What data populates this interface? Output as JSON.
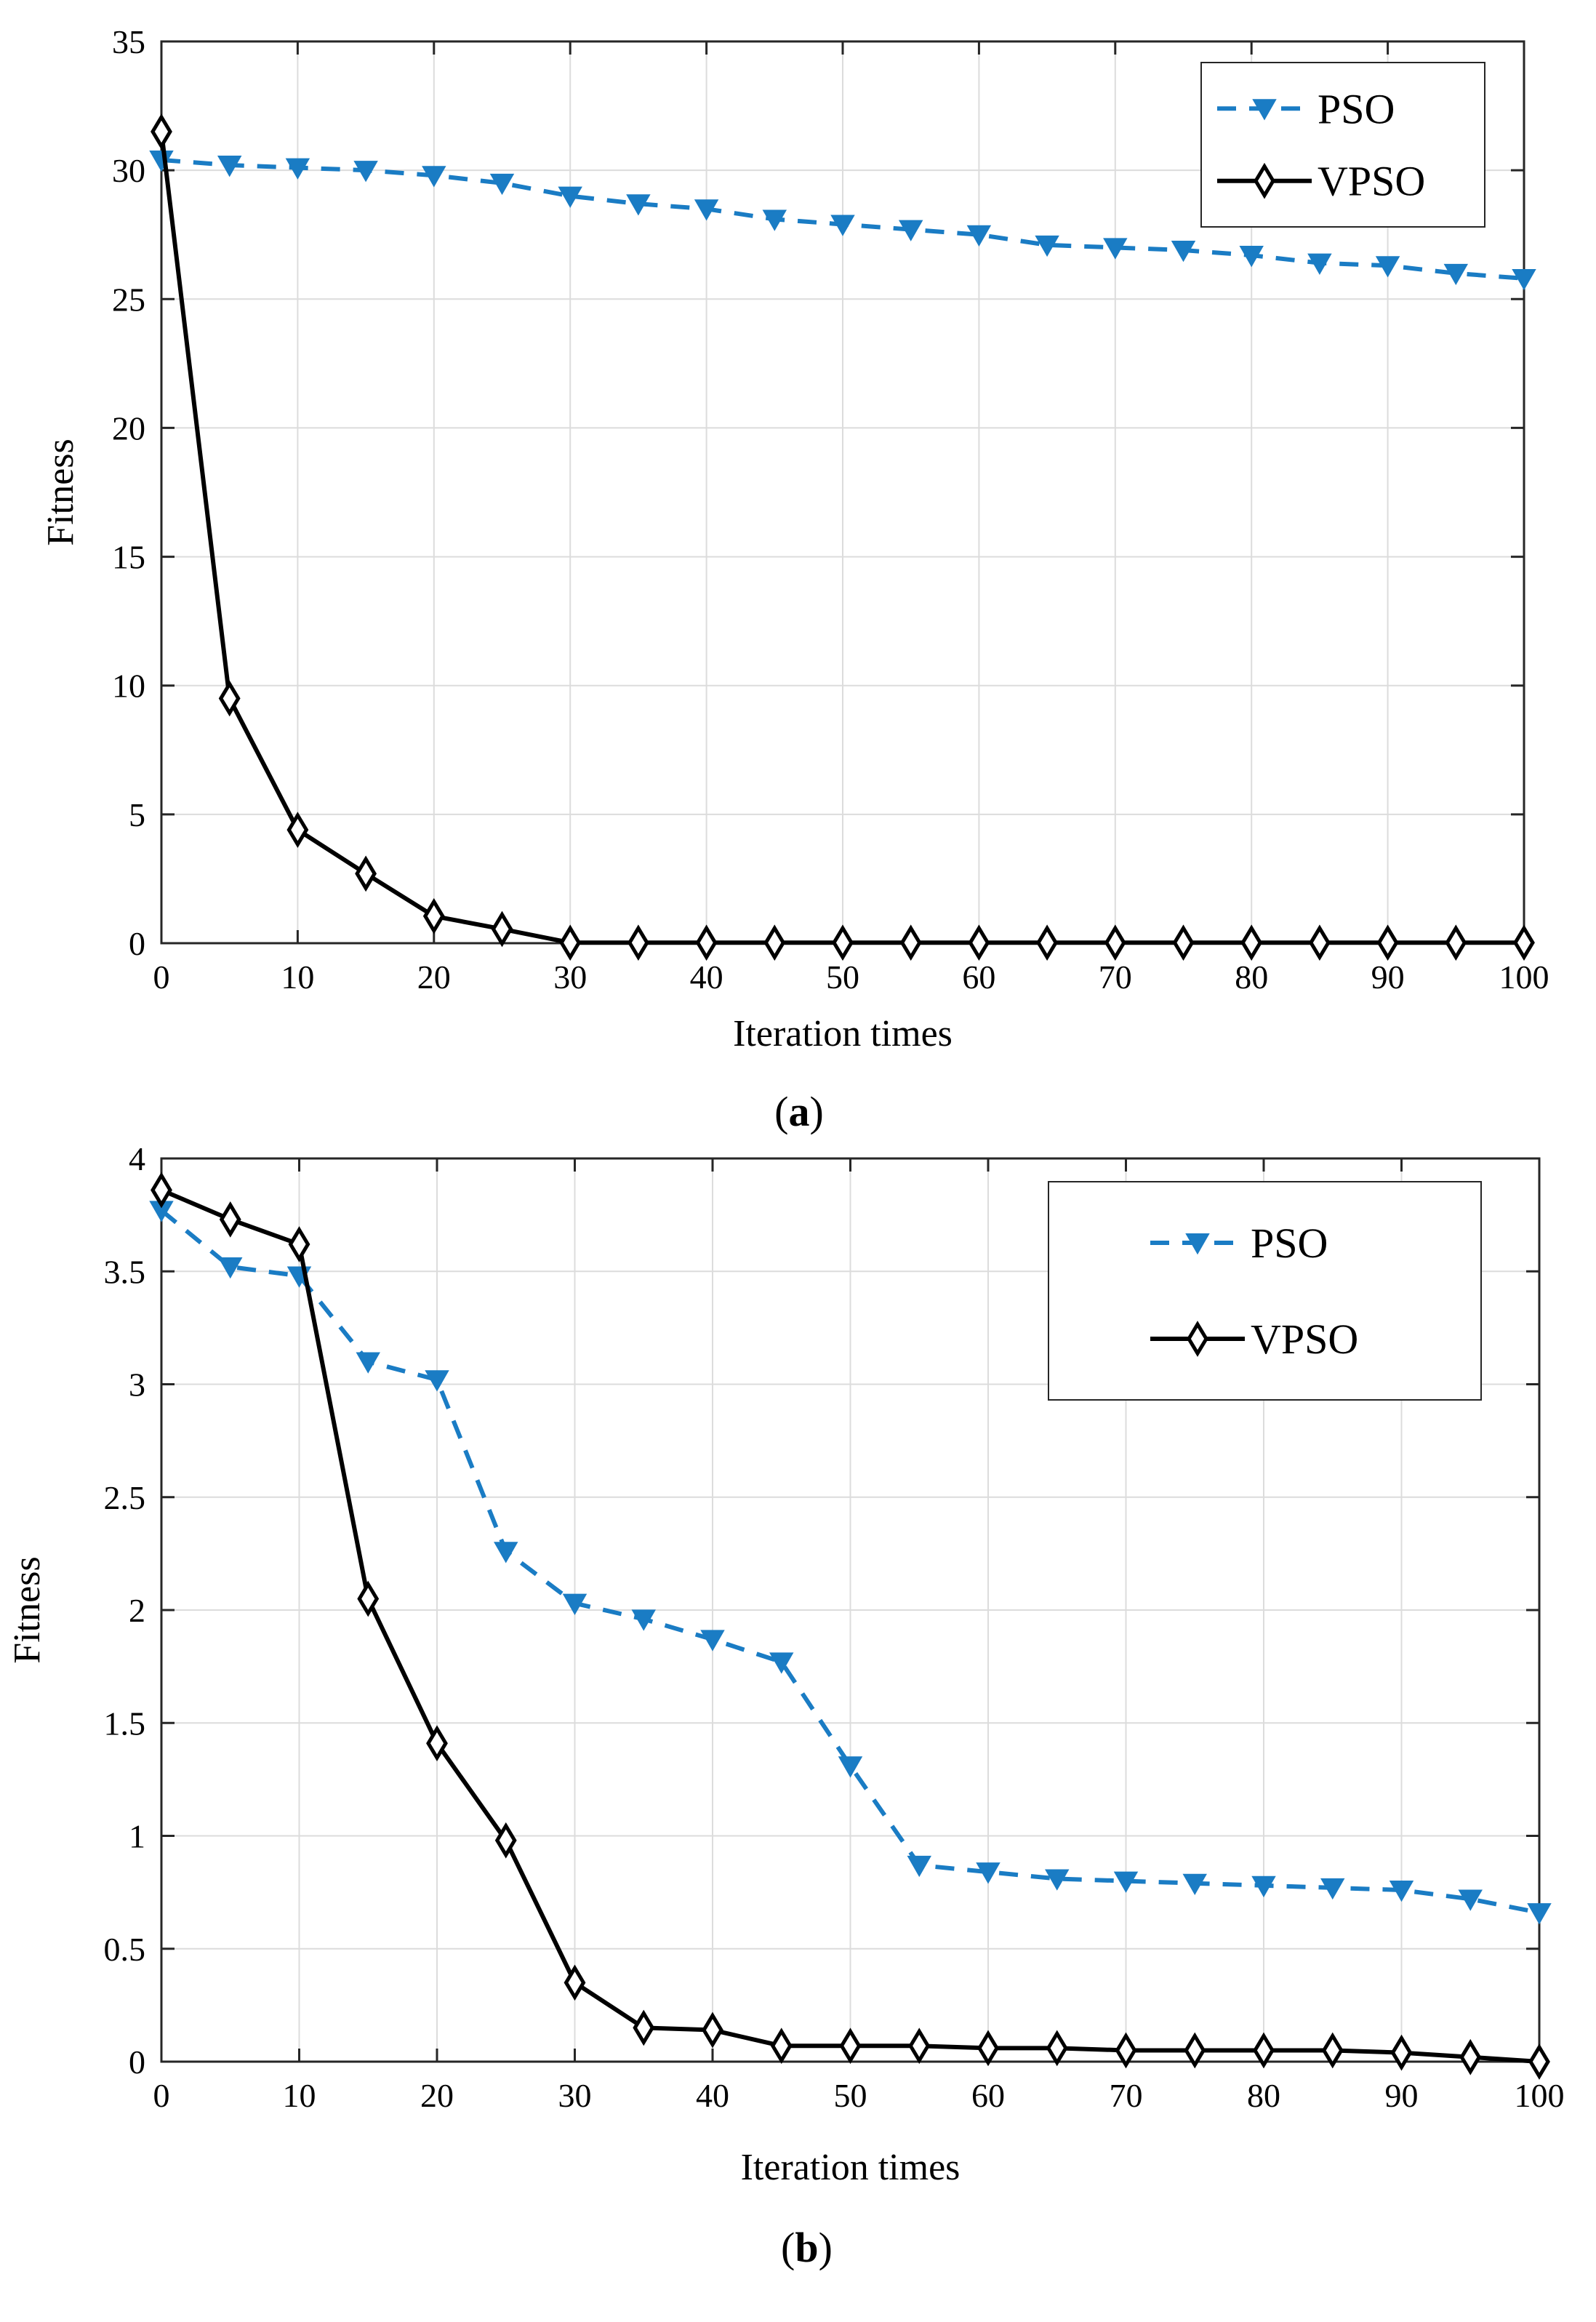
{
  "colors": {
    "pso": "#1a7cc4",
    "vpso": "#000000",
    "grid": "#dcdcdc",
    "axis": "#262626"
  },
  "chart_data": [
    {
      "type": "line",
      "caption_prefix": "(",
      "caption_letter": "a",
      "caption_suffix": ")",
      "xlabel": "Iteration times",
      "ylabel": "Fitness",
      "xlim": [
        0,
        100
      ],
      "ylim": [
        0,
        35
      ],
      "xticks": [
        0,
        10,
        20,
        30,
        40,
        50,
        60,
        70,
        80,
        90,
        100
      ],
      "yticks": [
        0,
        5,
        10,
        15,
        20,
        25,
        30,
        35
      ],
      "grid": true,
      "legend_position": "top-right",
      "x": [
        0,
        5,
        10,
        15,
        20,
        25,
        30,
        35,
        40,
        45,
        50,
        55,
        60,
        65,
        70,
        75,
        80,
        85,
        90,
        95,
        100
      ],
      "series": [
        {
          "name": "PSO",
          "style": "dashed",
          "marker": "triangle-down",
          "values": [
            30.4,
            30.2,
            30.1,
            30.0,
            29.8,
            29.5,
            29.0,
            28.7,
            28.5,
            28.1,
            27.9,
            27.7,
            27.5,
            27.1,
            27.0,
            26.9,
            26.7,
            26.4,
            26.3,
            26.0,
            25.8
          ]
        },
        {
          "name": "VPSO",
          "style": "solid",
          "marker": "diamond",
          "values": [
            31.5,
            9.5,
            4.4,
            2.7,
            1.05,
            0.55,
            0.02,
            0.02,
            0.02,
            0.02,
            0.02,
            0.02,
            0.02,
            0.02,
            0.02,
            0.02,
            0.02,
            0.02,
            0.02,
            0.02,
            0.02
          ]
        }
      ]
    },
    {
      "type": "line",
      "caption_prefix": "(",
      "caption_letter": "b",
      "caption_suffix": ")",
      "xlabel": "Iteration times",
      "ylabel": "Fitness",
      "xlim": [
        0,
        100
      ],
      "ylim": [
        0,
        4
      ],
      "xticks": [
        0,
        10,
        20,
        30,
        40,
        50,
        60,
        70,
        80,
        90,
        100
      ],
      "yticks": [
        0,
        0.5,
        1,
        1.5,
        2,
        2.5,
        3,
        3.5,
        4
      ],
      "grid": true,
      "legend_position": "top-right",
      "x": [
        0,
        5,
        10,
        15,
        20,
        25,
        30,
        35,
        40,
        45,
        50,
        55,
        60,
        65,
        70,
        75,
        80,
        85,
        90,
        95,
        100
      ],
      "series": [
        {
          "name": "PSO",
          "style": "dashed",
          "marker": "triangle-down",
          "values": [
            3.77,
            3.52,
            3.48,
            3.1,
            3.02,
            2.26,
            2.03,
            1.96,
            1.87,
            1.77,
            1.31,
            0.87,
            0.84,
            0.81,
            0.8,
            0.79,
            0.78,
            0.77,
            0.76,
            0.72,
            0.66
          ]
        },
        {
          "name": "VPSO",
          "style": "solid",
          "marker": "diamond",
          "values": [
            3.86,
            3.73,
            3.62,
            2.05,
            1.41,
            0.98,
            0.35,
            0.15,
            0.14,
            0.07,
            0.07,
            0.07,
            0.06,
            0.06,
            0.05,
            0.05,
            0.05,
            0.05,
            0.04,
            0.02,
            0.0
          ]
        }
      ]
    }
  ]
}
